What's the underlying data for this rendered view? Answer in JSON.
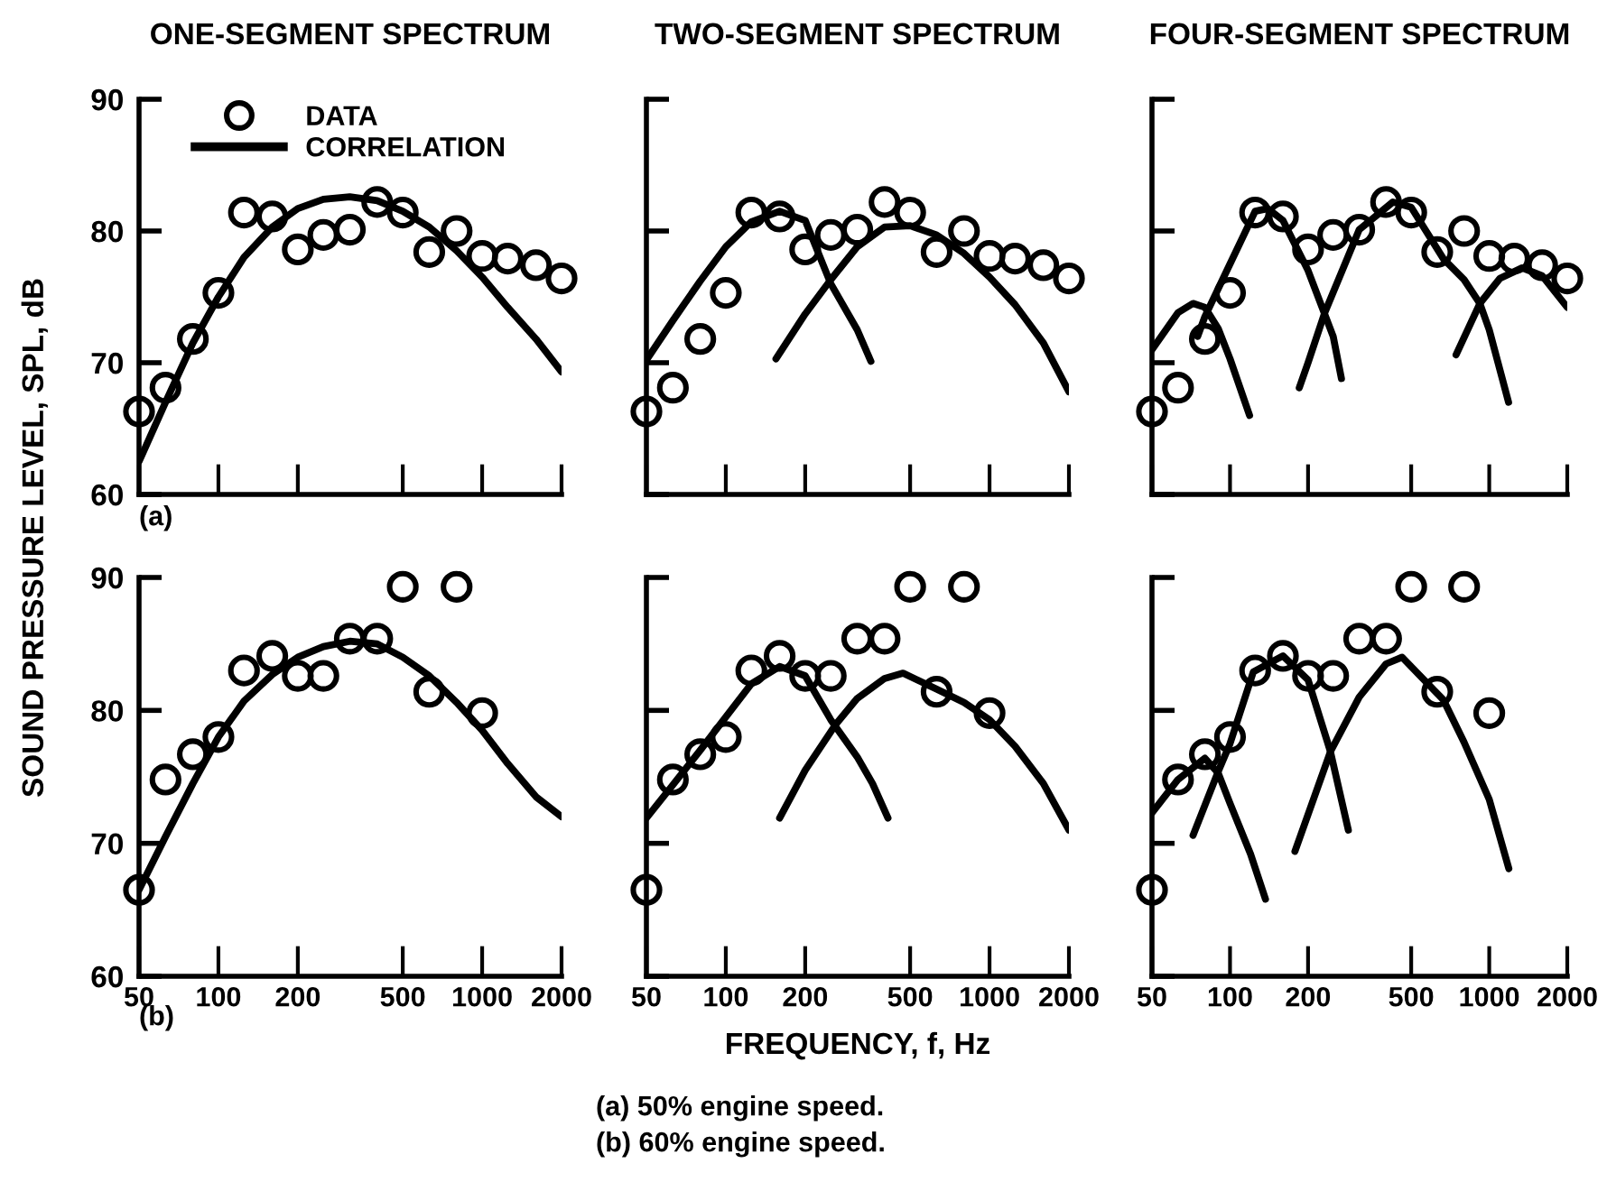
{
  "chart_data": [
    {
      "type": "scatter",
      "title": "ONE-SEGMENT SPECTRUM",
      "ylabel": "SOUND PRESSURE LEVEL, SPL, dB",
      "annotations": [
        "(a)"
      ],
      "log": "x",
      "xlim": [
        50,
        2000
      ],
      "ylim": [
        60,
        90
      ],
      "xticks": [
        50,
        100,
        200,
        500,
        1000,
        2000
      ],
      "yticks": [
        60,
        70,
        80,
        90
      ],
      "tick_labels": "y",
      "grid": false,
      "legend": "top left",
      "series": [
        {
          "name": "DATA",
          "type": "scatter",
          "marker": "circle",
          "color": "#000000",
          "x": [
            50,
            63,
            80,
            100,
            125,
            160,
            200,
            250,
            315,
            400,
            500,
            630,
            800,
            1000,
            1250,
            1600,
            2000
          ],
          "values": [
            66.3,
            68.1,
            71.8,
            75.3,
            81.4,
            81.1,
            78.6,
            79.7,
            80.1,
            82.2,
            81.4,
            78.4,
            80.0,
            78.1,
            77.9,
            77.4,
            76.4
          ]
        },
        {
          "name": "CORRELATION",
          "type": "line",
          "color": "#000000",
          "x": [
            50,
            63,
            80,
            100,
            125,
            160,
            200,
            250,
            315,
            400,
            500,
            630,
            800,
            1000,
            1250,
            1600,
            2000
          ],
          "values": [
            62.5,
            67.0,
            71.5,
            75.0,
            78.0,
            80.3,
            81.7,
            82.4,
            82.6,
            82.3,
            81.5,
            80.3,
            78.5,
            76.5,
            74.2,
            71.8,
            69.3
          ]
        }
      ]
    },
    {
      "type": "scatter",
      "title": "TWO-SEGMENT SPECTRUM",
      "log": "x",
      "xlim": [
        50,
        2000
      ],
      "ylim": [
        60,
        90
      ],
      "xticks": [
        50,
        100,
        200,
        500,
        1000,
        2000
      ],
      "yticks": [
        60,
        70,
        80,
        90
      ],
      "tick_labels": false,
      "grid": false,
      "series": [
        {
          "type": "scatter",
          "marker": "circle",
          "color": "#000000",
          "x": [
            50,
            63,
            80,
            100,
            125,
            160,
            200,
            250,
            315,
            400,
            500,
            630,
            800,
            1000,
            1250,
            1600,
            2000
          ],
          "values": [
            66.3,
            68.1,
            71.8,
            75.3,
            81.4,
            81.1,
            78.6,
            79.7,
            80.1,
            82.2,
            81.4,
            78.4,
            80.0,
            78.1,
            77.9,
            77.4,
            76.4
          ]
        },
        {
          "type": "line",
          "color": "#000000",
          "x": [
            50,
            63,
            80,
            100,
            125,
            160,
            200,
            250,
            315,
            355
          ],
          "values": [
            70.2,
            73.2,
            76.2,
            78.8,
            80.7,
            81.5,
            80.8,
            76.0,
            72.5,
            70.1
          ]
        },
        {
          "type": "line",
          "color": "#000000",
          "x": [
            155,
            200,
            250,
            315,
            400,
            500,
            630,
            800,
            1000,
            1250,
            1600,
            2000
          ],
          "values": [
            70.3,
            73.7,
            76.3,
            78.8,
            80.3,
            80.4,
            79.7,
            78.3,
            76.5,
            74.4,
            71.5,
            67.8
          ]
        }
      ]
    },
    {
      "type": "scatter",
      "title": "FOUR-SEGMENT SPECTRUM",
      "log": "x",
      "xlim": [
        50,
        2000
      ],
      "ylim": [
        60,
        90
      ],
      "xticks": [
        50,
        100,
        200,
        500,
        1000,
        2000
      ],
      "yticks": [
        60,
        70,
        80,
        90
      ],
      "tick_labels": false,
      "grid": false,
      "series": [
        {
          "type": "scatter",
          "marker": "circle",
          "color": "#000000",
          "x": [
            50,
            63,
            80,
            100,
            125,
            160,
            200,
            250,
            315,
            400,
            500,
            630,
            800,
            1000,
            1250,
            1600,
            2000
          ],
          "values": [
            66.3,
            68.1,
            71.8,
            75.3,
            81.4,
            81.1,
            78.6,
            79.7,
            80.1,
            82.2,
            81.4,
            78.4,
            80.0,
            78.1,
            77.9,
            77.4,
            76.4
          ]
        },
        {
          "type": "line",
          "color": "#000000",
          "x": [
            50,
            63,
            72,
            80,
            90,
            100,
            119
          ],
          "values": [
            71.0,
            73.8,
            74.5,
            74.2,
            72.6,
            70.3,
            66.0
          ]
        },
        {
          "type": "line",
          "color": "#000000",
          "x": [
            75,
            80,
            100,
            125,
            140,
            160,
            200,
            250,
            269
          ],
          "values": [
            72.0,
            73.5,
            77.5,
            81.5,
            81.7,
            80.8,
            77.0,
            72.0,
            68.8
          ]
        },
        {
          "type": "line",
          "color": "#000000",
          "x": [
            185,
            200,
            232,
            315,
            425,
            500,
            665,
            800,
            920,
            1000,
            1187
          ],
          "values": [
            68.1,
            70.0,
            73.8,
            80.1,
            82.2,
            81.8,
            77.9,
            76.3,
            74.5,
            72.5,
            67.0
          ]
        },
        {
          "type": "line",
          "color": "#000000",
          "x": [
            745,
            920,
            1100,
            1340,
            1600,
            2000
          ],
          "values": [
            70.6,
            74.5,
            76.4,
            77.2,
            76.6,
            74.2
          ]
        }
      ]
    },
    {
      "type": "scatter",
      "annotations": [
        "(b)"
      ],
      "log": "x",
      "xlim": [
        50,
        2000
      ],
      "ylim": [
        60,
        90
      ],
      "xticks": [
        50,
        100,
        200,
        500,
        1000,
        2000
      ],
      "yticks": [
        60,
        70,
        80,
        90
      ],
      "grid": false,
      "series": [
        {
          "type": "scatter",
          "marker": "circle",
          "color": "#000000",
          "x": [
            50,
            63,
            80,
            100,
            125,
            160,
            200,
            250,
            315,
            400,
            500,
            630,
            800,
            1000
          ],
          "values": [
            66.5,
            74.8,
            76.7,
            78.0,
            83.0,
            84.1,
            82.6,
            82.6,
            85.4,
            85.4,
            89.3,
            81.4,
            89.3,
            79.8
          ]
        },
        {
          "type": "line",
          "color": "#000000",
          "x": [
            50,
            63,
            80,
            100,
            125,
            160,
            200,
            250,
            315,
            400,
            500,
            630,
            800,
            1000,
            1250,
            1600,
            2000
          ],
          "values": [
            66.5,
            70.5,
            74.5,
            78.0,
            80.7,
            82.7,
            84.0,
            84.8,
            85.2,
            85.0,
            84.0,
            82.6,
            80.6,
            78.5,
            76.0,
            73.5,
            72.0
          ]
        }
      ]
    },
    {
      "type": "scatter",
      "xlabel": "FREQUENCY, f, Hz",
      "annotations": [
        "(a) 50% engine speed.",
        "(b) 60% engine speed."
      ],
      "log": "x",
      "xlim": [
        50,
        2000
      ],
      "ylim": [
        60,
        90
      ],
      "xticks": [
        50,
        100,
        200,
        500,
        1000,
        2000
      ],
      "yticks": [
        60,
        70,
        80,
        90
      ],
      "tick_labels": "x",
      "grid": false,
      "series": [
        {
          "type": "scatter",
          "marker": "circle",
          "color": "#000000",
          "x": [
            50,
            63,
            80,
            100,
            125,
            160,
            200,
            250,
            315,
            400,
            500,
            630,
            800,
            1000
          ],
          "values": [
            66.5,
            74.8,
            76.7,
            78.0,
            83.0,
            84.1,
            82.6,
            82.6,
            85.4,
            85.4,
            89.3,
            81.4,
            89.3,
            79.8
          ]
        },
        {
          "type": "line",
          "color": "#000000",
          "x": [
            50,
            63,
            80,
            100,
            125,
            160,
            200,
            250,
            315,
            360,
            412
          ],
          "values": [
            71.9,
            74.4,
            77.0,
            79.5,
            82.0,
            83.3,
            82.6,
            79.3,
            76.5,
            74.5,
            71.9
          ]
        },
        {
          "type": "line",
          "color": "#000000",
          "x": [
            160,
            200,
            260,
            315,
            400,
            470,
            630,
            800,
            1000,
            1250,
            1600,
            2000
          ],
          "values": [
            71.9,
            75.5,
            78.9,
            80.9,
            82.4,
            82.8,
            81.6,
            80.6,
            79.3,
            77.3,
            74.5,
            71.0
          ]
        }
      ]
    },
    {
      "type": "scatter",
      "log": "x",
      "xlim": [
        50,
        2000
      ],
      "ylim": [
        60,
        90
      ],
      "xticks": [
        50,
        100,
        200,
        500,
        1000,
        2000
      ],
      "yticks": [
        60,
        70,
        80,
        90
      ],
      "tick_labels": "x",
      "grid": false,
      "series": [
        {
          "type": "scatter",
          "marker": "circle",
          "color": "#000000",
          "x": [
            50,
            63,
            80,
            100,
            125,
            160,
            200,
            250,
            315,
            400,
            500,
            630,
            800,
            1000
          ],
          "values": [
            66.5,
            74.8,
            76.7,
            78.0,
            83.0,
            84.1,
            82.6,
            82.6,
            85.4,
            85.4,
            89.3,
            81.4,
            89.3,
            79.8
          ]
        },
        {
          "type": "line",
          "color": "#000000",
          "x": [
            50,
            63,
            80,
            90,
            100,
            120,
            137
          ],
          "values": [
            72.3,
            74.8,
            76.4,
            75.3,
            73.0,
            69.2,
            65.8
          ]
        },
        {
          "type": "line",
          "color": "#000000",
          "x": [
            72,
            90,
            100,
            123,
            160,
            200,
            244,
            286
          ],
          "values": [
            70.6,
            75.4,
            77.5,
            82.9,
            84.1,
            82.3,
            76.9,
            71.0
          ]
        },
        {
          "type": "line",
          "color": "#000000",
          "x": [
            178,
            244,
            315,
            400,
            461,
            665,
            800,
            1000,
            1190
          ],
          "values": [
            69.4,
            76.9,
            81.0,
            83.5,
            84.0,
            80.8,
            77.6,
            73.3,
            68.1
          ]
        }
      ]
    }
  ]
}
